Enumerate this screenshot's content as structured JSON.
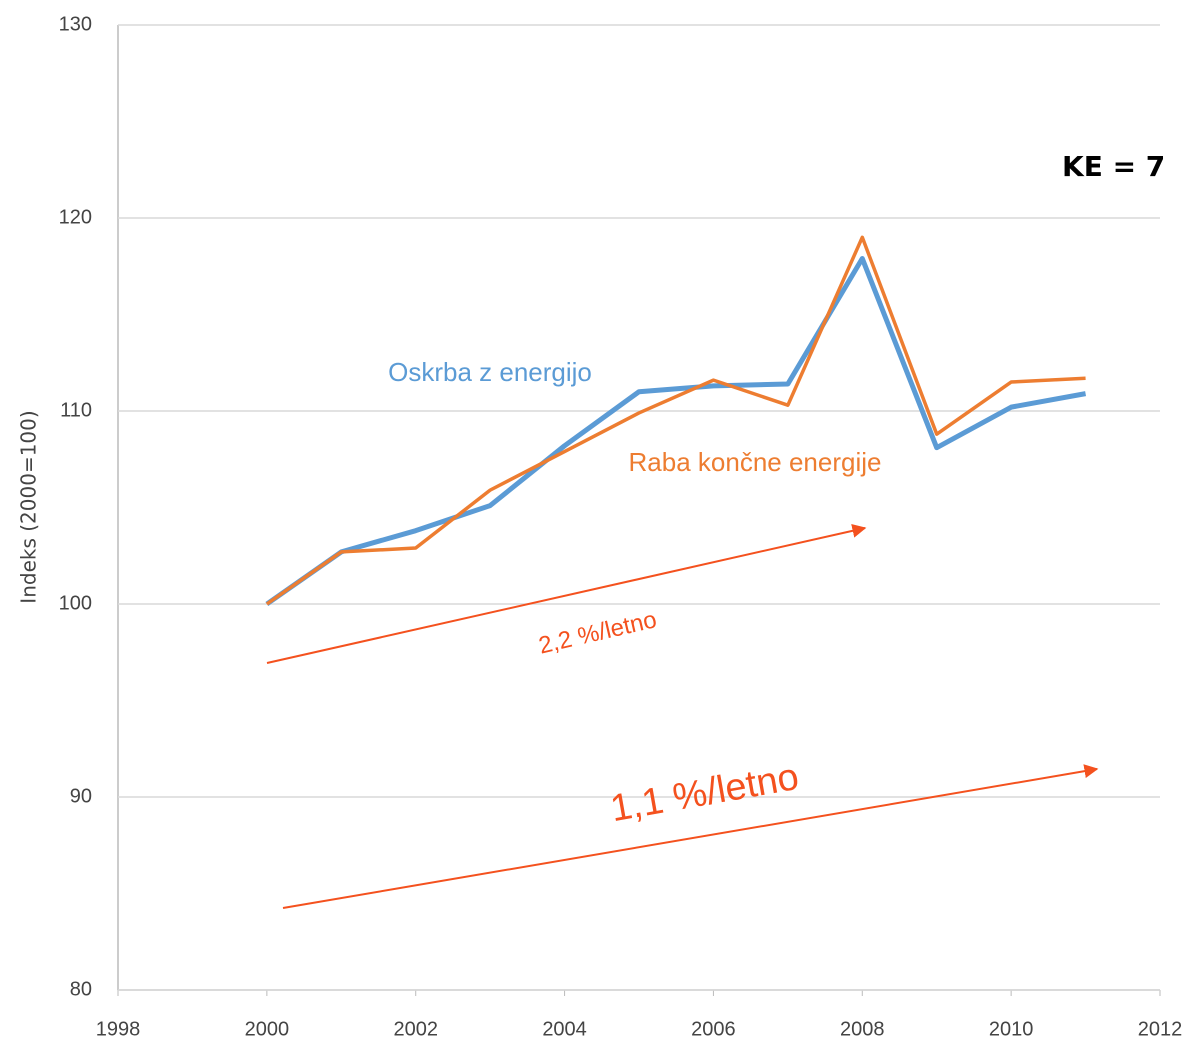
{
  "chart_data": {
    "type": "line",
    "y_label": "Indeks (2000=100)",
    "x": [
      2000,
      2001,
      2002,
      2003,
      2004,
      2005,
      2006,
      2007,
      2008,
      2009,
      2010,
      2011
    ],
    "series": [
      {
        "name": "Oskrba z energijo",
        "color": "#5b9bd5",
        "values": [
          100,
          102.7,
          103.8,
          105.1,
          108.2,
          111.0,
          111.3,
          111.4,
          117.9,
          108.1,
          110.2,
          110.9
        ]
      },
      {
        "name": "Raba končne energije",
        "color": "#ed7d31",
        "values": [
          100,
          102.7,
          102.9,
          105.9,
          107.9,
          109.9,
          111.6,
          110.3,
          119.0,
          108.8,
          111.5,
          111.7
        ]
      }
    ],
    "xlim": [
      1998,
      2012
    ],
    "xticks": [
      1998,
      2000,
      2002,
      2004,
      2006,
      2008,
      2010,
      2012
    ],
    "ylim": [
      80,
      130
    ],
    "yticks": [
      80,
      90,
      100,
      110,
      120,
      130
    ],
    "grid": true,
    "annotations": [
      "2,2 %/letno",
      "1,1 %/letno",
      "KE = 7"
    ]
  }
}
